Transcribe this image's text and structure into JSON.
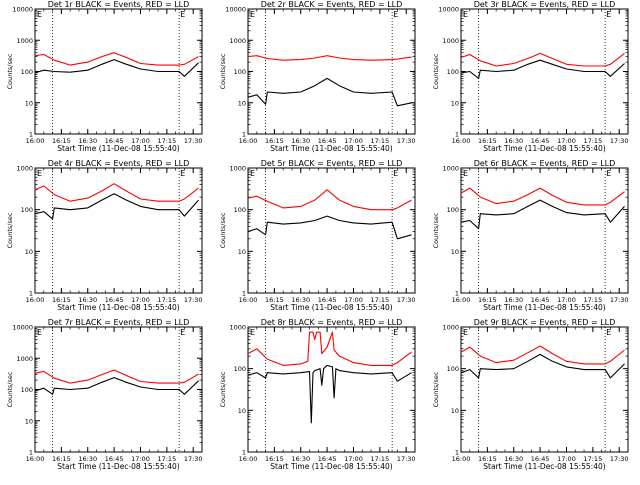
{
  "chart_data": [
    {
      "type": "line",
      "title": "Det 1r BLACK = Events, RED = LLD",
      "xlabel": "Start Time (11-Dec-08 15:55:40)",
      "ylabel": "Counts/sec",
      "y_scale": "log",
      "ylim": [
        1,
        10000
      ],
      "xlim": [
        "16:00",
        "17:35"
      ],
      "x_ticks": [
        "16:00",
        "16:15",
        "16:30",
        "16:45",
        "17:00",
        "17:15",
        "17:30"
      ],
      "y_ticks": [
        "1",
        "10",
        "100",
        "1000",
        "10000"
      ],
      "markers": [
        "E",
        "E"
      ],
      "vlines": [
        "16:10",
        "17:22"
      ],
      "series": [
        {
          "name": "Events",
          "color": "#000000",
          "x": [
            "16:00",
            "16:05",
            "16:11",
            "16:20",
            "16:30",
            "16:38",
            "16:45",
            "16:52",
            "17:00",
            "17:10",
            "17:22",
            "17:25",
            "17:33"
          ],
          "y": [
            90,
            110,
            100,
            95,
            110,
            170,
            240,
            170,
            120,
            100,
            100,
            70,
            190
          ]
        },
        {
          "name": "LLD",
          "color": "#ff0000",
          "x": [
            "16:00",
            "16:05",
            "16:11",
            "16:20",
            "16:30",
            "16:38",
            "16:45",
            "16:52",
            "17:00",
            "17:10",
            "17:22",
            "17:25",
            "17:33"
          ],
          "y": [
            320,
            350,
            230,
            160,
            200,
            300,
            400,
            280,
            180,
            160,
            160,
            170,
            300
          ]
        }
      ]
    },
    {
      "type": "line",
      "title": "Det 2r BLACK = Events, RED = LLD",
      "xlabel": "Start Time (11-Dec-08 15:55:40)",
      "ylabel": "Counts/sec",
      "y_scale": "log",
      "ylim": [
        1,
        10000
      ],
      "xlim": [
        "16:00",
        "17:35"
      ],
      "x_ticks": [
        "16:00",
        "16:15",
        "16:30",
        "16:45",
        "17:00",
        "17:15",
        "17:30"
      ],
      "y_ticks": [
        "1",
        "10",
        "100",
        "1000",
        "10000"
      ],
      "markers": [
        "E",
        "E"
      ],
      "vlines": [
        "16:10",
        "17:22"
      ],
      "series": [
        {
          "name": "Events",
          "color": "#000000",
          "x": [
            "16:00",
            "16:05",
            "16:10",
            "16:11",
            "16:20",
            "16:30",
            "16:38",
            "16:45",
            "16:52",
            "17:00",
            "17:10",
            "17:22",
            "17:25",
            "17:33"
          ],
          "y": [
            15,
            18,
            9,
            22,
            20,
            22,
            35,
            60,
            35,
            22,
            20,
            22,
            8,
            10
          ]
        },
        {
          "name": "LLD",
          "color": "#ff0000",
          "x": [
            "16:00",
            "16:05",
            "16:11",
            "16:20",
            "16:30",
            "16:38",
            "16:45",
            "16:52",
            "17:00",
            "17:10",
            "17:22",
            "17:25",
            "17:33"
          ],
          "y": [
            300,
            320,
            260,
            230,
            240,
            270,
            320,
            270,
            240,
            230,
            240,
            250,
            290
          ]
        }
      ]
    },
    {
      "type": "line",
      "title": "Det 3r BLACK = Events, RED = LLD",
      "xlabel": "Start Time (11-Dec-08 15:55:40)",
      "ylabel": "Counts/sec",
      "y_scale": "log",
      "ylim": [
        1,
        10000
      ],
      "xlim": [
        "16:00",
        "17:35"
      ],
      "x_ticks": [
        "16:00",
        "16:15",
        "16:30",
        "16:45",
        "17:00",
        "17:15",
        "17:30"
      ],
      "y_ticks": [
        "1",
        "10",
        "100",
        "1000",
        "10000"
      ],
      "markers": [
        "E",
        "E"
      ],
      "vlines": [
        "16:10",
        "17:22"
      ],
      "series": [
        {
          "name": "Events",
          "color": "#000000",
          "x": [
            "16:00",
            "16:05",
            "16:10",
            "16:11",
            "16:20",
            "16:30",
            "16:38",
            "16:45",
            "16:52",
            "17:00",
            "17:10",
            "17:22",
            "17:25",
            "17:33"
          ],
          "y": [
            90,
            100,
            60,
            110,
            100,
            110,
            170,
            230,
            170,
            120,
            100,
            100,
            70,
            180
          ]
        },
        {
          "name": "LLD",
          "color": "#ff0000",
          "x": [
            "16:00",
            "16:05",
            "16:11",
            "16:20",
            "16:30",
            "16:38",
            "16:45",
            "16:52",
            "17:00",
            "17:10",
            "17:22",
            "17:25",
            "17:33"
          ],
          "y": [
            280,
            350,
            220,
            150,
            180,
            260,
            380,
            260,
            170,
            150,
            150,
            170,
            380
          ]
        }
      ]
    },
    {
      "type": "line",
      "title": "Det 4r BLACK = Events, RED = LLD",
      "xlabel": "Start Time (11-Dec-08 15:55:40)",
      "ylabel": "Counts/sec",
      "y_scale": "log",
      "ylim": [
        1,
        1000
      ],
      "xlim": [
        "16:00",
        "17:35"
      ],
      "x_ticks": [
        "16:00",
        "16:15",
        "16:30",
        "16:45",
        "17:00",
        "17:15",
        "17:30"
      ],
      "y_ticks": [
        "1",
        "10",
        "100",
        "1000"
      ],
      "markers": [
        "E",
        "E"
      ],
      "vlines": [
        "16:10",
        "17:22"
      ],
      "series": [
        {
          "name": "Events",
          "color": "#000000",
          "x": [
            "16:00",
            "16:05",
            "16:10",
            "16:11",
            "16:20",
            "16:30",
            "16:38",
            "16:45",
            "16:52",
            "17:00",
            "17:10",
            "17:22",
            "17:25",
            "17:33"
          ],
          "y": [
            80,
            90,
            60,
            110,
            100,
            110,
            170,
            240,
            170,
            120,
            100,
            100,
            70,
            170
          ]
        },
        {
          "name": "LLD",
          "color": "#ff0000",
          "x": [
            "16:00",
            "16:05",
            "16:11",
            "16:20",
            "16:30",
            "16:38",
            "16:45",
            "16:52",
            "17:00",
            "17:10",
            "17:22",
            "17:25",
            "17:33"
          ],
          "y": [
            300,
            370,
            230,
            160,
            190,
            280,
            420,
            280,
            180,
            160,
            160,
            180,
            330
          ]
        }
      ]
    },
    {
      "type": "line",
      "title": "Det 5r BLACK = Events, RED = LLD",
      "xlabel": "Start Time (11-Dec-08 15:55:40)",
      "ylabel": "Counts/sec",
      "y_scale": "log",
      "ylim": [
        1,
        1000
      ],
      "xlim": [
        "16:00",
        "17:35"
      ],
      "x_ticks": [
        "16:00",
        "16:15",
        "16:30",
        "16:45",
        "17:00",
        "17:15",
        "17:30"
      ],
      "y_ticks": [
        "1",
        "10",
        "100",
        "1000"
      ],
      "markers": [
        "E",
        "E"
      ],
      "vlines": [
        "16:10",
        "17:22"
      ],
      "series": [
        {
          "name": "Events",
          "color": "#000000",
          "x": [
            "16:00",
            "16:05",
            "16:10",
            "16:11",
            "16:20",
            "16:30",
            "16:38",
            "16:45",
            "16:52",
            "17:00",
            "17:10",
            "17:22",
            "17:25",
            "17:33"
          ],
          "y": [
            30,
            35,
            25,
            50,
            45,
            48,
            55,
            70,
            55,
            48,
            45,
            50,
            20,
            25
          ]
        },
        {
          "name": "LLD",
          "color": "#ff0000",
          "x": [
            "16:00",
            "16:05",
            "16:11",
            "16:20",
            "16:30",
            "16:38",
            "16:45",
            "16:52",
            "17:00",
            "17:10",
            "17:22",
            "17:25",
            "17:33"
          ],
          "y": [
            190,
            210,
            160,
            110,
            120,
            170,
            300,
            170,
            120,
            100,
            100,
            110,
            170
          ]
        }
      ]
    },
    {
      "type": "line",
      "title": "Det 6r BLACK = Events, RED = LLD",
      "xlabel": "Start Time (11-Dec-08 15:55:40)",
      "ylabel": "Counts/sec",
      "y_scale": "log",
      "ylim": [
        1,
        1000
      ],
      "xlim": [
        "16:00",
        "17:35"
      ],
      "x_ticks": [
        "16:00",
        "16:15",
        "16:30",
        "16:45",
        "17:00",
        "17:15",
        "17:30"
      ],
      "y_ticks": [
        "1",
        "10",
        "100",
        "1000"
      ],
      "markers": [
        "E",
        "E"
      ],
      "vlines": [
        "16:10",
        "17:22"
      ],
      "series": [
        {
          "name": "Events",
          "color": "#000000",
          "x": [
            "16:00",
            "16:05",
            "16:10",
            "16:11",
            "16:20",
            "16:30",
            "16:38",
            "16:45",
            "16:52",
            "17:00",
            "17:10",
            "17:22",
            "17:25",
            "17:33"
          ],
          "y": [
            50,
            55,
            35,
            80,
            75,
            80,
            120,
            170,
            120,
            85,
            75,
            80,
            50,
            120
          ]
        },
        {
          "name": "LLD",
          "color": "#ff0000",
          "x": [
            "16:00",
            "16:05",
            "16:11",
            "16:20",
            "16:30",
            "16:38",
            "16:45",
            "16:52",
            "17:00",
            "17:10",
            "17:22",
            "17:25",
            "17:33"
          ],
          "y": [
            250,
            330,
            200,
            140,
            160,
            230,
            330,
            220,
            150,
            130,
            130,
            150,
            270
          ]
        }
      ]
    },
    {
      "type": "line",
      "title": "Det 7r BLACK = Events, RED = LLD",
      "xlabel": "Start Time (11-Dec-08 15:55:40)",
      "ylabel": "Counts/sec",
      "y_scale": "log",
      "ylim": [
        1,
        10000
      ],
      "xlim": [
        "16:00",
        "17:35"
      ],
      "x_ticks": [
        "16:00",
        "16:15",
        "16:30",
        "16:45",
        "17:00",
        "17:15",
        "17:30"
      ],
      "y_ticks": [
        "1",
        "10",
        "100",
        "1000",
        "10000"
      ],
      "markers": [
        "E",
        "E"
      ],
      "vlines": [
        "16:10",
        "17:22"
      ],
      "series": [
        {
          "name": "Events",
          "color": "#000000",
          "x": [
            "16:00",
            "16:05",
            "16:10",
            "16:11",
            "16:20",
            "16:30",
            "16:38",
            "16:45",
            "16:52",
            "17:00",
            "17:10",
            "17:22",
            "17:25",
            "17:33"
          ],
          "y": [
            90,
            110,
            70,
            110,
            100,
            110,
            170,
            240,
            170,
            120,
            100,
            100,
            70,
            190
          ]
        },
        {
          "name": "LLD",
          "color": "#ff0000",
          "x": [
            "16:00",
            "16:05",
            "16:11",
            "16:20",
            "16:30",
            "16:38",
            "16:45",
            "16:52",
            "17:00",
            "17:10",
            "17:22",
            "17:25",
            "17:33"
          ],
          "y": [
            330,
            380,
            230,
            160,
            200,
            300,
            420,
            280,
            180,
            160,
            160,
            170,
            310
          ]
        }
      ]
    },
    {
      "type": "line",
      "title": "Det 8r BLACK = Events, RED = LLD",
      "xlabel": "Start Time (11-Dec-08 15:55:40)",
      "ylabel": "Counts/sec",
      "y_scale": "log",
      "ylim": [
        1,
        1000
      ],
      "xlim": [
        "16:00",
        "17:35"
      ],
      "x_ticks": [
        "16:00",
        "16:15",
        "16:30",
        "16:45",
        "17:00",
        "17:15",
        "17:30"
      ],
      "y_ticks": [
        "1",
        "10",
        "100",
        "1000"
      ],
      "markers": [
        "E",
        "E"
      ],
      "vlines": [
        "16:10",
        "17:22"
      ],
      "series": [
        {
          "name": "Events",
          "color": "#000000",
          "x": [
            "16:00",
            "16:05",
            "16:10",
            "16:11",
            "16:20",
            "16:30",
            "16:35",
            "16:36",
            "16:37",
            "16:38",
            "16:41",
            "16:42",
            "16:43",
            "16:45",
            "16:48",
            "16:49",
            "16:50",
            "16:52",
            "17:00",
            "17:10",
            "17:22",
            "17:25",
            "17:33"
          ],
          "y": [
            70,
            80,
            60,
            80,
            75,
            80,
            85,
            5,
            80,
            90,
            100,
            40,
            100,
            120,
            110,
            20,
            100,
            90,
            80,
            75,
            80,
            50,
            80
          ]
        },
        {
          "name": "LLD",
          "color": "#ff0000",
          "x": [
            "16:00",
            "16:05",
            "16:11",
            "16:20",
            "16:30",
            "16:34",
            "16:35",
            "16:37",
            "16:38",
            "16:39",
            "16:41",
            "16:42",
            "16:45",
            "16:48",
            "16:49",
            "16:52",
            "17:00",
            "17:10",
            "17:22",
            "17:25",
            "17:33"
          ],
          "y": [
            230,
            300,
            170,
            120,
            130,
            150,
            750,
            750,
            500,
            750,
            750,
            230,
            330,
            750,
            280,
            200,
            140,
            120,
            120,
            140,
            250
          ]
        }
      ]
    },
    {
      "type": "line",
      "title": "Det 9r BLACK = Events, RED = LLD",
      "xlabel": "Start Time (11-Dec-08 15:55:40)",
      "ylabel": "Counts/sec",
      "y_scale": "log",
      "ylim": [
        1,
        1000
      ],
      "xlim": [
        "16:00",
        "17:35"
      ],
      "x_ticks": [
        "16:00",
        "16:15",
        "16:30",
        "16:45",
        "17:00",
        "17:15",
        "17:30"
      ],
      "y_ticks": [
        "1",
        "10",
        "100",
        "1000"
      ],
      "markers": [
        "E",
        "E"
      ],
      "vlines": [
        "16:10",
        "17:22"
      ],
      "series": [
        {
          "name": "Events",
          "color": "#000000",
          "x": [
            "16:00",
            "16:05",
            "16:10",
            "16:11",
            "16:20",
            "16:30",
            "16:38",
            "16:45",
            "16:52",
            "17:00",
            "17:10",
            "17:22",
            "17:25",
            "17:33"
          ],
          "y": [
            80,
            95,
            60,
            100,
            95,
            100,
            150,
            220,
            150,
            110,
            95,
            95,
            60,
            130
          ]
        },
        {
          "name": "LLD",
          "color": "#ff0000",
          "x": [
            "16:00",
            "16:05",
            "16:11",
            "16:20",
            "16:30",
            "16:38",
            "16:45",
            "16:52",
            "17:00",
            "17:10",
            "17:22",
            "17:25",
            "17:33"
          ],
          "y": [
            250,
            330,
            200,
            140,
            160,
            240,
            350,
            230,
            150,
            130,
            130,
            150,
            280
          ]
        }
      ]
    }
  ]
}
